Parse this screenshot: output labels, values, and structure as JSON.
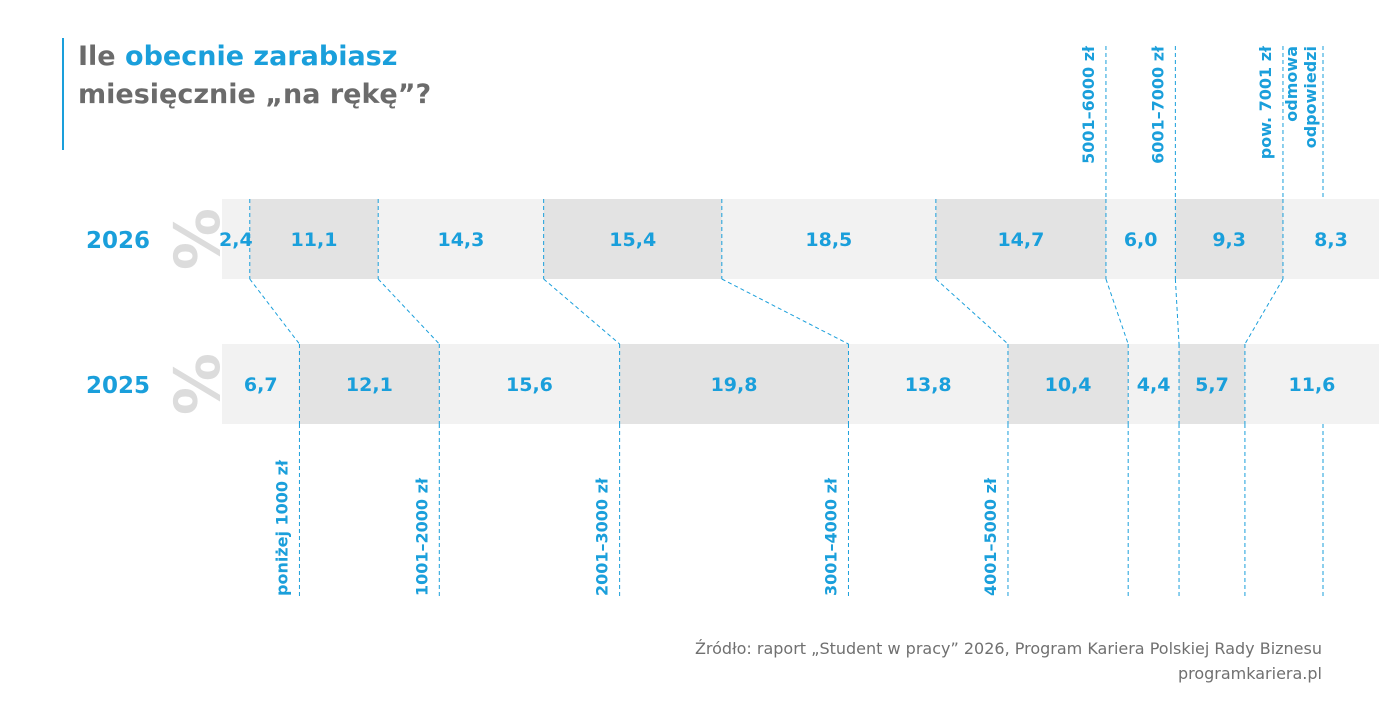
{
  "title": {
    "prefix": "Ile",
    "highlight": "obecnie zarabiasz",
    "line2": "miesięcznie „na rękę”?"
  },
  "source": {
    "line1": "Źródło: raport „Student w pracy” 2026, Program Kariera Polskiej Rady Biznesu",
    "line2": "programkariera.pl"
  },
  "colors": {
    "accent": "#1a9fdb",
    "title_gray": "#6b6b6b",
    "band_light": "#f2f2f2",
    "band_dark": "#e3e3e3",
    "percent_gray": "#dcdcdc"
  },
  "chart_data": {
    "type": "bar",
    "orientation": "horizontal-stacked-100",
    "unit_symbol": "%",
    "categories": [
      "poniżej 1000 zł",
      "1001–2000 zł",
      "2001–3000 zł",
      "3001–4000 zł",
      "4001–5000 zł",
      "5001–6000 zł",
      "6001–7000 zł",
      "pow. 7001 zł",
      "odmowa odpowiedzi"
    ],
    "series": [
      {
        "name": "2026",
        "values": [
          2.4,
          11.1,
          14.3,
          15.4,
          18.5,
          14.7,
          6.0,
          9.3,
          8.3
        ],
        "labels": [
          "2,4",
          "11,1",
          "14,3",
          "15,4",
          "18,5",
          "14,7",
          "6,0",
          "9,3",
          "8,3"
        ]
      },
      {
        "name": "2025",
        "values": [
          6.7,
          12.1,
          15.6,
          19.8,
          13.8,
          10.4,
          4.4,
          5.7,
          11.6
        ],
        "labels": [
          "6,7",
          "12,1",
          "15,6",
          "19,8",
          "13,8",
          "10,4",
          "4,4",
          "5,7",
          "11,6"
        ]
      }
    ],
    "category_labels_top": [
      "5001–6000 zł",
      "6001–7000 zł",
      "pow. 7001 zł",
      "odmowa\nodpowiedzi"
    ],
    "category_labels_bottom": [
      "poniżej 1000 zł",
      "1001–2000 zł",
      "2001–3000 zł",
      "3001–4000 zł",
      "4001–5000 zł"
    ]
  }
}
